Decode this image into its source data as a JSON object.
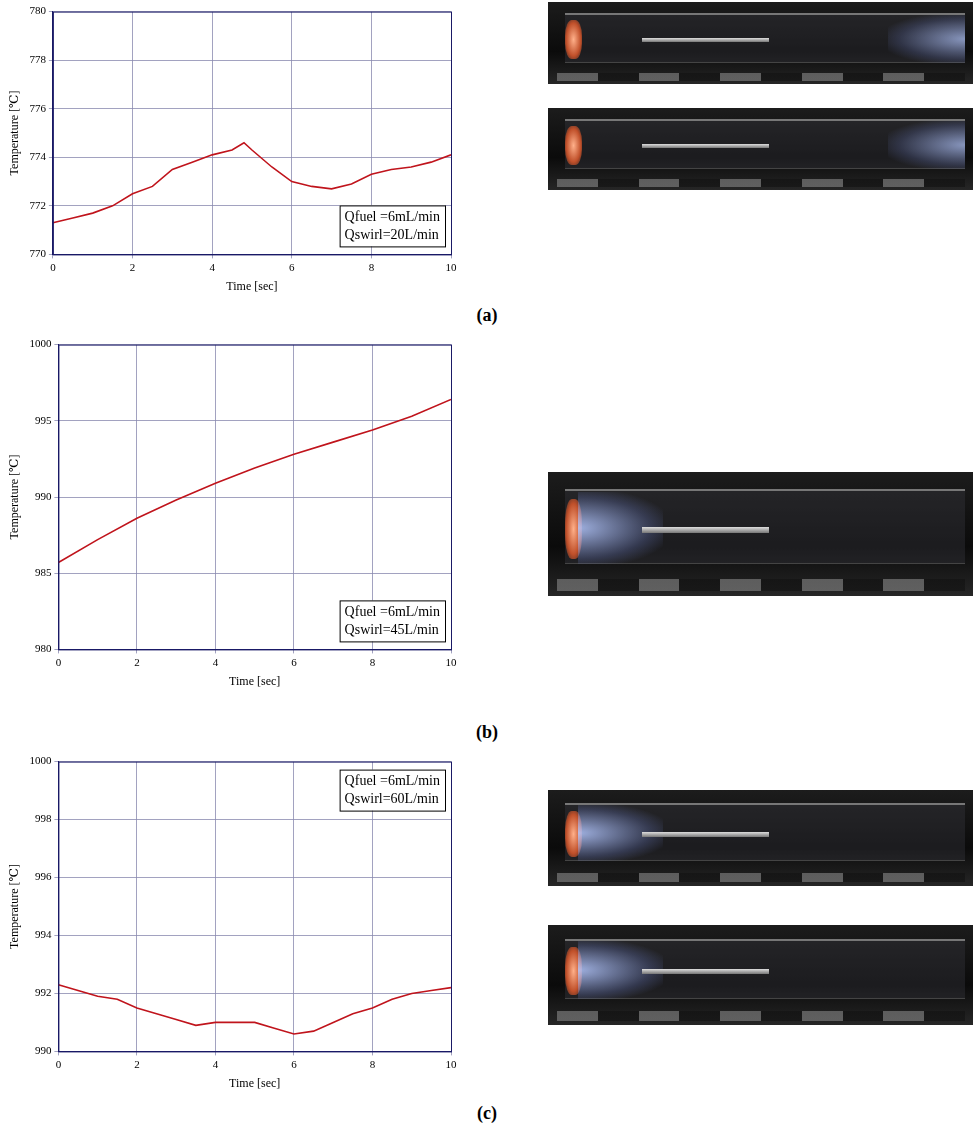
{
  "chart_data": [
    {
      "type": "line",
      "label": "(a)",
      "x_label": "Time [sec]",
      "y_label": "Temperature [℃]",
      "annotations": [
        "Qfuel =6mL/min",
        "Qswirl=20L/min"
      ],
      "grid": true,
      "xlim": [
        0,
        10
      ],
      "xticks": [
        0,
        2,
        4,
        6,
        8,
        10
      ],
      "ylim": [
        770,
        780
      ],
      "yticks": [
        770,
        772,
        774,
        776,
        778,
        780
      ],
      "series": [
        {
          "name": "Temperature",
          "color": "#c0141c",
          "x": [
            0,
            0.5,
            1,
            1.5,
            2,
            2.5,
            3,
            3.5,
            4,
            4.5,
            4.8,
            5,
            5.5,
            6,
            6.5,
            7,
            7.5,
            8,
            8.5,
            9,
            9.5,
            10
          ],
          "values": [
            771.3,
            771.5,
            771.7,
            772.0,
            772.5,
            772.8,
            773.5,
            773.8,
            774.1,
            774.3,
            774.6,
            774.3,
            773.6,
            773.0,
            772.8,
            772.7,
            772.9,
            773.3,
            773.5,
            773.6,
            773.8,
            774.1
          ]
        }
      ]
    },
    {
      "type": "line",
      "label": "(b)",
      "x_label": "Time [sec]",
      "y_label": "Temperature [℃]",
      "annotations": [
        "Qfuel =6mL/min",
        "Qswirl=45L/min"
      ],
      "grid": true,
      "xlim": [
        0,
        10
      ],
      "xticks": [
        0,
        2,
        4,
        6,
        8,
        10
      ],
      "ylim": [
        980,
        1000
      ],
      "yticks": [
        980,
        985,
        990,
        995,
        1000
      ],
      "series": [
        {
          "name": "Temperature",
          "color": "#c0141c",
          "x": [
            0,
            1,
            2,
            3,
            4,
            5,
            6,
            7,
            8,
            9,
            10
          ],
          "values": [
            985.7,
            987.2,
            988.6,
            989.8,
            990.9,
            991.9,
            992.8,
            993.6,
            994.4,
            995.3,
            996.4
          ]
        }
      ]
    },
    {
      "type": "line",
      "label": "(c)",
      "x_label": "Time [sec]",
      "y_label": "Temperature [℃]",
      "annotations": [
        "Qfuel =6mL/min",
        "Qswirl=60L/min"
      ],
      "grid": true,
      "xlim": [
        0,
        10
      ],
      "xticks": [
        0,
        2,
        4,
        6,
        8,
        10
      ],
      "ylim": [
        990,
        1000
      ],
      "yticks": [
        990,
        992,
        994,
        996,
        998,
        1000
      ],
      "series": [
        {
          "name": "Temperature",
          "color": "#c0141c",
          "x": [
            0,
            0.5,
            1,
            1.5,
            2,
            2.5,
            3,
            3.5,
            4,
            4.5,
            5,
            5.5,
            6,
            6.5,
            7,
            7.5,
            8,
            8.5,
            9,
            9.5,
            10
          ],
          "values": [
            992.3,
            992.1,
            991.9,
            991.8,
            991.5,
            991.3,
            991.1,
            990.9,
            991.0,
            991.0,
            991.0,
            990.8,
            990.6,
            990.7,
            991.0,
            991.3,
            991.5,
            991.8,
            992.0,
            992.1,
            992.2
          ]
        }
      ]
    }
  ]
}
